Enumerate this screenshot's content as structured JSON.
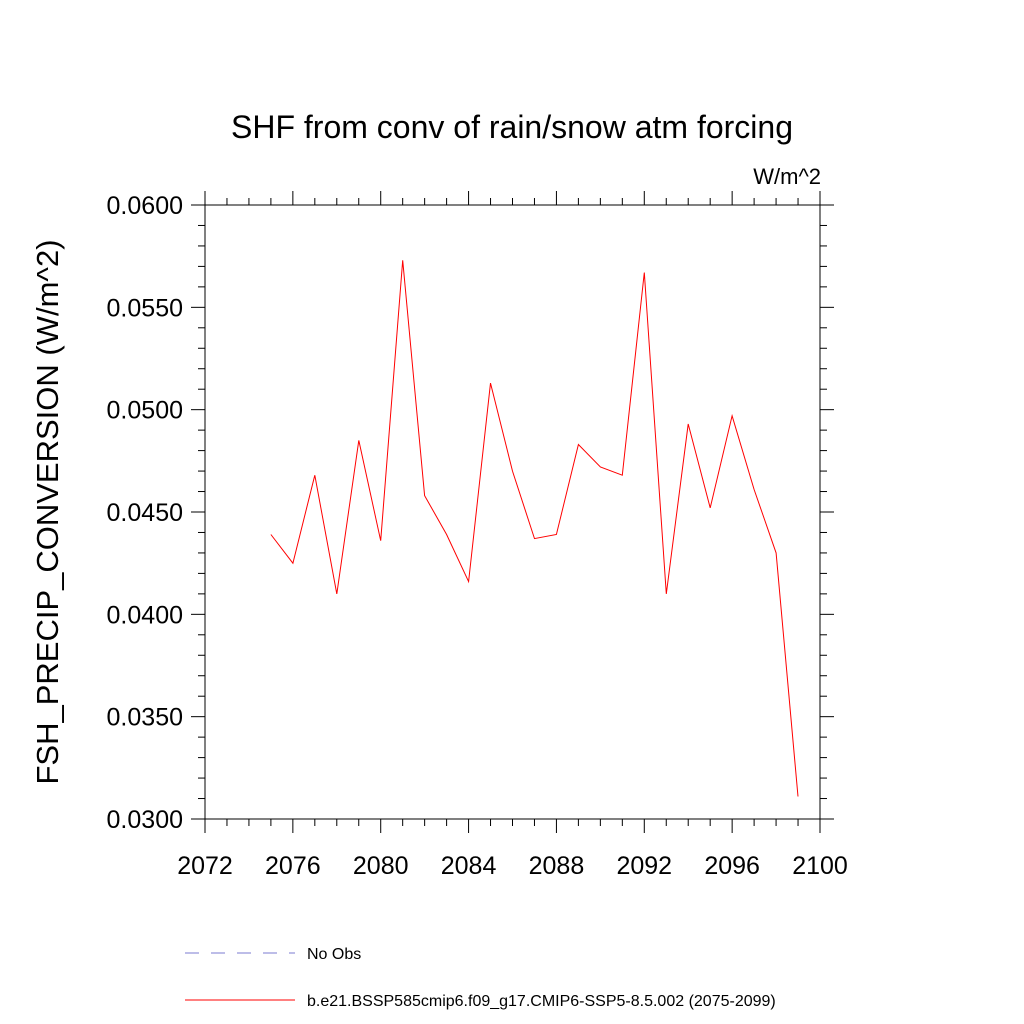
{
  "chart_data": {
    "type": "line",
    "title": "SHF from conv of rain/snow atm forcing",
    "units": "W/m^2",
    "xlabel": "",
    "ylabel": "FSH_PRECIP_CONVERSION  (W/m^2)",
    "xlim": [
      2072,
      2100
    ],
    "ylim": [
      0.03,
      0.06
    ],
    "x_ticks": [
      "2072",
      "2076",
      "2080",
      "2084",
      "2088",
      "2092",
      "2096",
      "2100"
    ],
    "y_ticks": [
      "0.0300",
      "0.0350",
      "0.0400",
      "0.0450",
      "0.0500",
      "0.0550",
      "0.0600"
    ],
    "grid": false,
    "legend_position": "bottom",
    "series": [
      {
        "name": "No Obs",
        "color": "#7b7bd0",
        "dash": "dashed",
        "x": [],
        "values": []
      },
      {
        "name": "b.e21.BSSP585cmip6.f09_g17.CMIP6-SSP5-8.5.002 (2075-2099)",
        "color": "#ff0000",
        "dash": "solid",
        "x": [
          2075,
          2076,
          2077,
          2078,
          2079,
          2080,
          2081,
          2082,
          2083,
          2084,
          2085,
          2086,
          2087,
          2088,
          2089,
          2090,
          2091,
          2092,
          2093,
          2094,
          2095,
          2096,
          2097,
          2098,
          2099
        ],
        "values": [
          0.0439,
          0.0425,
          0.0468,
          0.041,
          0.0485,
          0.0436,
          0.0573,
          0.0458,
          0.0439,
          0.0416,
          0.0513,
          0.047,
          0.0437,
          0.0439,
          0.0483,
          0.0472,
          0.0468,
          0.0567,
          0.041,
          0.0493,
          0.0452,
          0.0497,
          0.0461,
          0.043,
          0.0311
        ]
      }
    ]
  }
}
